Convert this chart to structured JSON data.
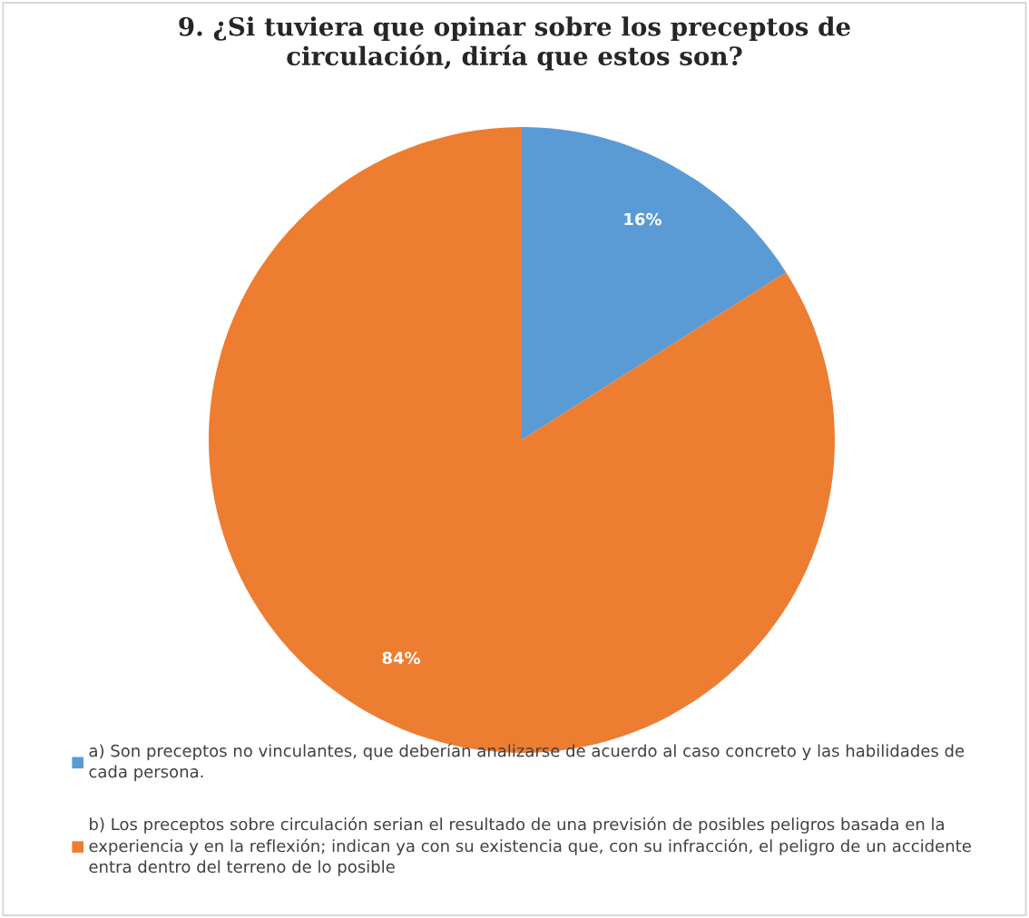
{
  "chart_data": {
    "type": "pie",
    "title": "9. ¿Si tuviera que opinar sobre los preceptos de circulación, diría que estos son?",
    "categories": [
      "a) Son preceptos no vinculantes, que deberían analizarse de acuerdo al caso concreto y las habilidades de cada persona.",
      "b) Los preceptos sobre circulación serian el resultado de una previsión de posibles peligros basada en la experiencia y en la reflexión; indican ya con su existencia que, con su infracción, el peligro de un accidente entra dentro del terreno de lo posible"
    ],
    "values": [
      16,
      84
    ],
    "colors": [
      "#5b9bd5",
      "#ed7d31"
    ],
    "value_labels": [
      "16%",
      "84%"
    ],
    "legend": "bottom"
  }
}
